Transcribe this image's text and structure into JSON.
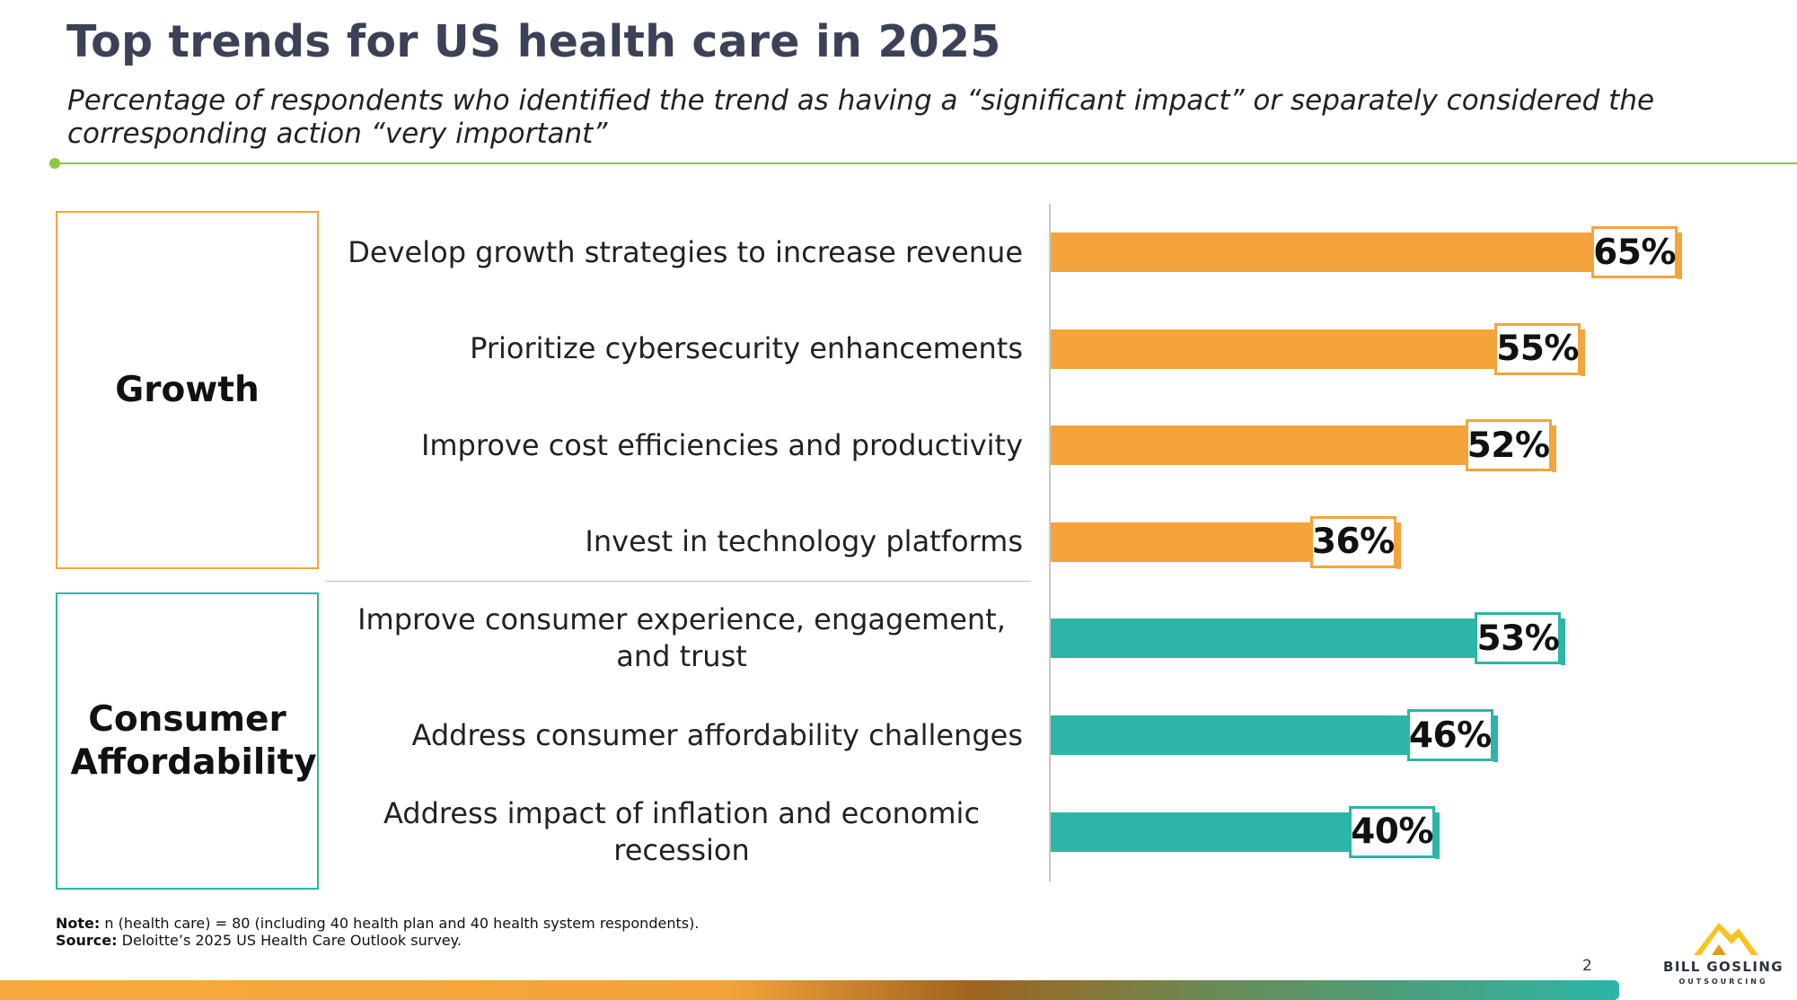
{
  "header": {
    "title": "Top trends for US health care in 2025",
    "subtitle": "Percentage of respondents who identified the trend as having a “significant impact” or separately considered the corresponding action “very important”"
  },
  "categories": {
    "growth": "Growth",
    "consumer": "Consumer Affordability"
  },
  "colors": {
    "growth": "#f4a43b",
    "consumer": "#2bb6a8",
    "accent_line": "#8fc740",
    "title": "#3b4257"
  },
  "chart_data": {
    "type": "bar",
    "orientation": "horizontal",
    "title": "Top trends for US health care in 2025",
    "categories": [
      "Develop growth strategies to increase revenue",
      "Prioritize cybersecurity enhancements",
      "Improve cost efficiencies and productivity",
      "Invest in technology platforms",
      "Improve consumer experience, engagement, and trust",
      "Address consumer affordability challenges",
      "Address impact of inflation and economic recession"
    ],
    "groups": [
      "Growth",
      "Growth",
      "Growth",
      "Growth",
      "Consumer Affordability",
      "Consumer Affordability",
      "Consumer Affordability"
    ],
    "values": [
      65,
      55,
      52,
      36,
      53,
      46,
      40
    ],
    "value_labels": [
      "65%",
      "55%",
      "52%",
      "36%",
      "53%",
      "46%",
      "40%"
    ],
    "xlim": [
      0,
      100
    ],
    "unit": "%",
    "grid": false
  },
  "footer": {
    "note_label": "Note:",
    "note_text": "n (health care) = 80 (including 40 health plan and 40 health system respondents).",
    "source_label": "Source:",
    "source_text": "Deloitte’s 2025 US Health Care Outlook survey.",
    "page_number": "2",
    "logo_line1": "BILL GOSLING",
    "logo_line2": "OUTSOURCING"
  }
}
